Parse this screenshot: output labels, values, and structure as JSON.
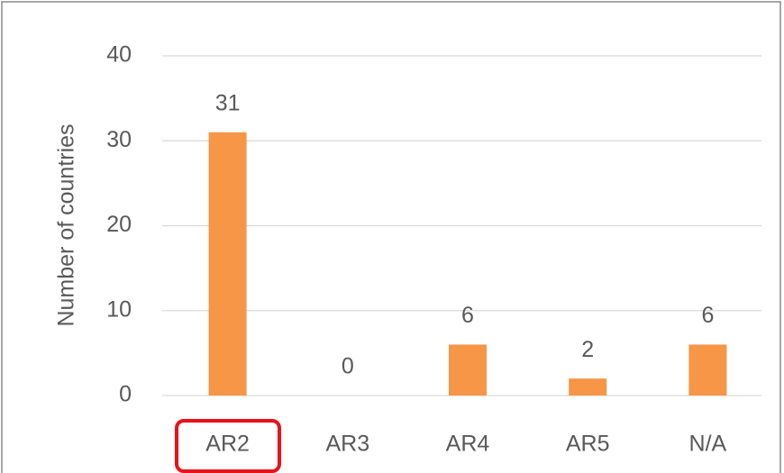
{
  "chart_data": {
    "type": "bar",
    "y_label": "Number of countries",
    "categories": [
      "AR2",
      "AR3",
      "AR4",
      "AR5",
      "N/A"
    ],
    "values": [
      31,
      0,
      6,
      2,
      6
    ],
    "color": "#f79646",
    "ylim": [
      0,
      40
    ],
    "yticks": [
      0,
      10,
      20,
      30,
      40
    ],
    "grid": true
  }
}
